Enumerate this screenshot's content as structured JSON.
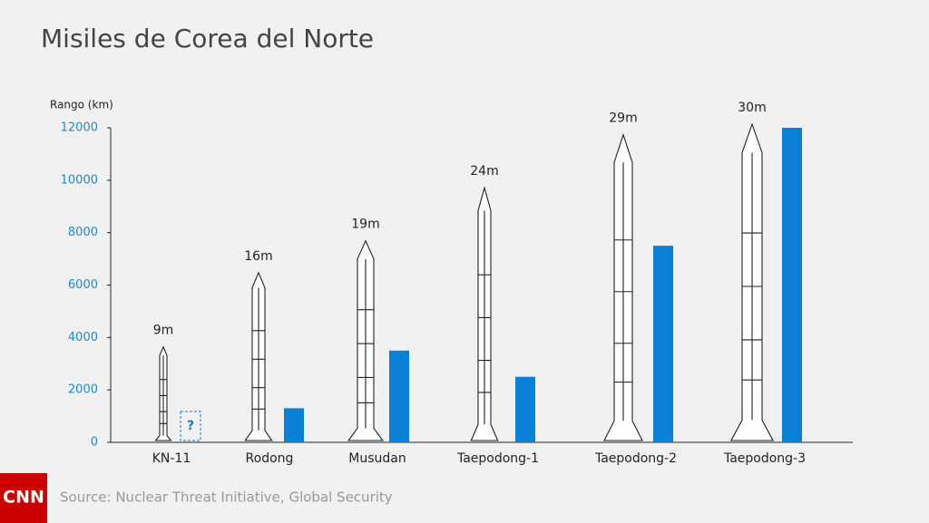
{
  "chart_data": {
    "type": "bar",
    "title": "Misiles de Corea del Norte",
    "y_label": "Rango (km)",
    "categories": [
      "KN-11",
      "Rodong",
      "Musudan",
      "Taepodong-1",
      "Taepodong-2",
      "Taepodong-3"
    ],
    "values": [
      null,
      1300,
      3500,
      2500,
      7500,
      12000
    ],
    "value_labels": [
      "?",
      null,
      null,
      null,
      null,
      null
    ],
    "color": "#0a7fd6",
    "ylim": [
      0,
      12000
    ],
    "yticks": [
      0,
      2000,
      4000,
      6000,
      8000,
      10000,
      12000
    ],
    "rocket_lengths": {
      "values": [
        9,
        16,
        19,
        24,
        29,
        30
      ],
      "value_labels": [
        "9m",
        "16m",
        "19m",
        "24m",
        "29m",
        "30m"
      ]
    },
    "source": "Source: Nuclear Threat Initiative, Global Security",
    "logo": "CNN"
  }
}
